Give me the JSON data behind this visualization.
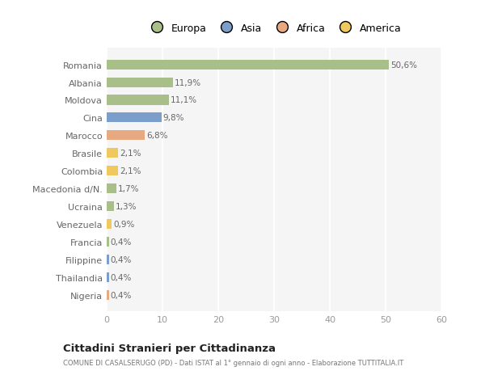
{
  "countries": [
    "Romania",
    "Albania",
    "Moldova",
    "Cina",
    "Marocco",
    "Brasile",
    "Colombia",
    "Macedonia d/N.",
    "Ucraina",
    "Venezuela",
    "Francia",
    "Filippine",
    "Thailandia",
    "Nigeria"
  ],
  "values": [
    50.6,
    11.9,
    11.1,
    9.8,
    6.8,
    2.1,
    2.1,
    1.7,
    1.3,
    0.9,
    0.4,
    0.4,
    0.4,
    0.4
  ],
  "labels": [
    "50,6%",
    "11,9%",
    "11,1%",
    "9,8%",
    "6,8%",
    "2,1%",
    "2,1%",
    "1,7%",
    "1,3%",
    "0,9%",
    "0,4%",
    "0,4%",
    "0,4%",
    "0,4%"
  ],
  "colors": [
    "#a8bf8a",
    "#a8bf8a",
    "#a8bf8a",
    "#7b9eca",
    "#e8a882",
    "#f0c860",
    "#f0c860",
    "#a8bf8a",
    "#a8bf8a",
    "#f0c860",
    "#a8bf8a",
    "#7b9eca",
    "#7b9eca",
    "#e8a882"
  ],
  "legend_labels": [
    "Europa",
    "Asia",
    "Africa",
    "America"
  ],
  "legend_colors": [
    "#a8bf8a",
    "#7b9eca",
    "#e8a882",
    "#f0c860"
  ],
  "title": "Cittadini Stranieri per Cittadinanza",
  "subtitle": "COMUNE DI CASALSERUGO (PD) - Dati ISTAT al 1° gennaio di ogni anno - Elaborazione TUTTITALIA.IT",
  "xlim": [
    0,
    60
  ],
  "xticks": [
    0,
    10,
    20,
    30,
    40,
    50,
    60
  ],
  "bg_color": "#ffffff",
  "plot_bg_color": "#f5f5f5"
}
